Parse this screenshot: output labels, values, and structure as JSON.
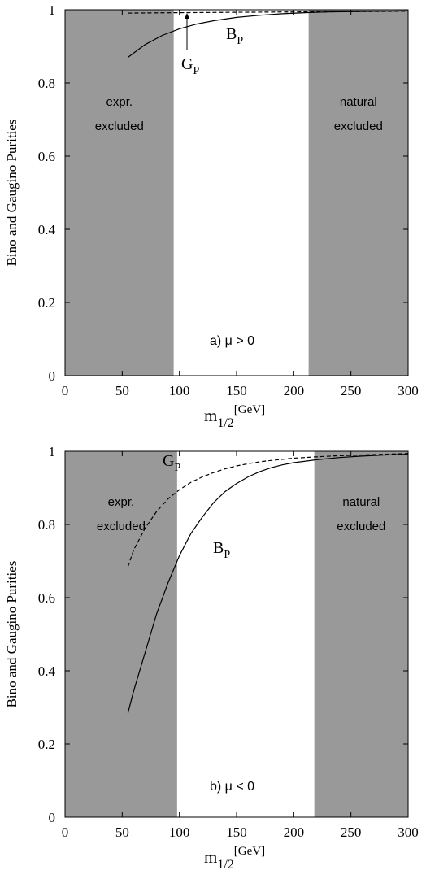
{
  "chart_data": [
    {
      "type": "line",
      "xlabel": "m",
      "xlabel_sub": "1/2",
      "xlabel_unit": "[GeV]",
      "ylabel": "Bino and Gaugino Purities",
      "xlim": [
        0,
        300
      ],
      "ylim": [
        0,
        1
      ],
      "xticks": [
        "0",
        "50",
        "100",
        "150",
        "200",
        "250",
        "300"
      ],
      "yticks": [
        "0",
        "0.2",
        "0.4",
        "0.6",
        "0.8",
        "1"
      ],
      "tag": "a)  μ > 0",
      "regions": [
        {
          "label_lines": [
            "expr.",
            "excluded"
          ],
          "x_range": [
            0,
            95
          ],
          "color": "#999999"
        },
        {
          "label_lines": [
            "natural",
            "excluded"
          ],
          "x_range": [
            213,
            300
          ],
          "color": "#999999"
        }
      ],
      "series": [
        {
          "name": "B",
          "name_sub": "P",
          "style": "solid",
          "x": [
            55,
            70,
            85,
            100,
            115,
            130,
            150,
            170,
            190,
            210,
            230,
            250,
            270,
            300
          ],
          "y": [
            0.87,
            0.905,
            0.93,
            0.948,
            0.961,
            0.97,
            0.979,
            0.985,
            0.989,
            0.992,
            0.994,
            0.995,
            0.996,
            0.997
          ]
        },
        {
          "name": "G",
          "name_sub": "P",
          "style": "dashed",
          "x": [
            55,
            100,
            150,
            200,
            250,
            300
          ],
          "y": [
            0.991,
            0.992,
            0.993,
            0.994,
            0.995,
            0.996
          ]
        }
      ]
    },
    {
      "type": "line",
      "xlabel": "m",
      "xlabel_sub": "1/2",
      "xlabel_unit": "[GeV]",
      "ylabel": "Bino and Gaugino Purities",
      "xlim": [
        0,
        300
      ],
      "ylim": [
        0,
        1
      ],
      "xticks": [
        "0",
        "50",
        "100",
        "150",
        "200",
        "250",
        "300"
      ],
      "yticks": [
        "0",
        "0.2",
        "0.4",
        "0.6",
        "0.8",
        "1"
      ],
      "tag": "b)  μ < 0",
      "regions": [
        {
          "label_lines": [
            "expr.",
            "excluded"
          ],
          "x_range": [
            0,
            98
          ],
          "color": "#999999"
        },
        {
          "label_lines": [
            "natural",
            "excluded"
          ],
          "x_range": [
            218,
            300
          ],
          "color": "#999999"
        }
      ],
      "series": [
        {
          "name": "B",
          "name_sub": "P",
          "style": "solid",
          "x": [
            55,
            60,
            70,
            80,
            90,
            100,
            110,
            120,
            130,
            140,
            150,
            160,
            170,
            180,
            190,
            200,
            220,
            240,
            260,
            280,
            300
          ],
          "y": [
            0.285,
            0.345,
            0.45,
            0.555,
            0.64,
            0.715,
            0.775,
            0.82,
            0.86,
            0.89,
            0.912,
            0.93,
            0.944,
            0.955,
            0.963,
            0.969,
            0.977,
            0.983,
            0.987,
            0.99,
            0.992
          ]
        },
        {
          "name": "G",
          "name_sub": "P",
          "style": "dashed",
          "x": [
            55,
            60,
            70,
            80,
            90,
            100,
            110,
            120,
            130,
            140,
            150,
            160,
            170,
            180,
            190,
            200,
            220,
            240,
            260,
            280,
            300
          ],
          "y": [
            0.685,
            0.73,
            0.79,
            0.835,
            0.87,
            0.895,
            0.915,
            0.93,
            0.942,
            0.952,
            0.96,
            0.966,
            0.971,
            0.975,
            0.978,
            0.981,
            0.985,
            0.988,
            0.99,
            0.992,
            0.994
          ]
        }
      ]
    }
  ]
}
